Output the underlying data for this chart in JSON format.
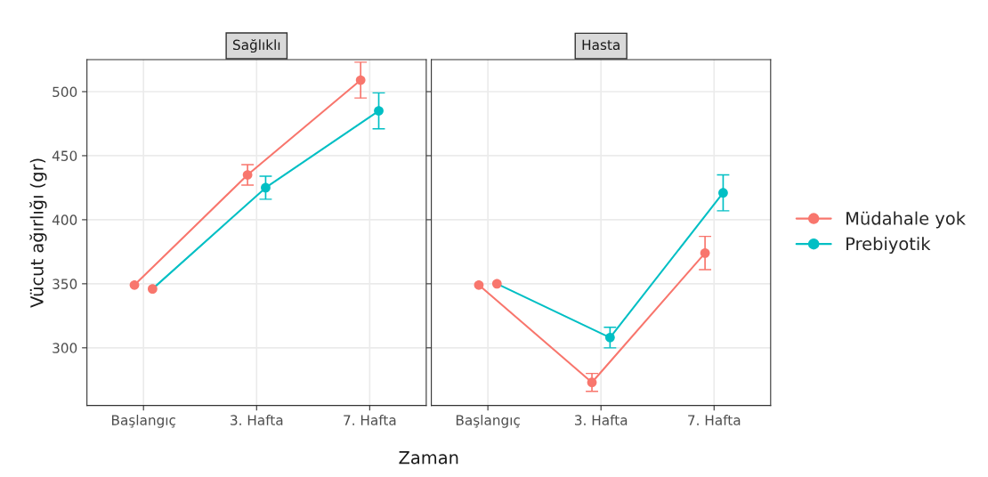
{
  "chart_data": [
    {
      "type": "line",
      "title": "Sağlıklı",
      "xlabel": "Zaman",
      "ylabel": "Vücut ağırlığı (gr)",
      "categories": [
        "Başlangıç",
        "3. Hafta",
        "7. Hafta"
      ],
      "ylim": [
        255,
        525
      ],
      "yticks": [
        300,
        350,
        400,
        450,
        500
      ],
      "grid": true,
      "marker": "circle",
      "line_style": "solid",
      "legend": "right",
      "series": [
        {
          "name": "Müdahale yok",
          "color": "#f8766d",
          "values": [
            349,
            435,
            509
          ],
          "errors": [
            null,
            8,
            14
          ]
        },
        {
          "name": "Prebiyotik",
          "color": "#00bfc4",
          "colors": [
            "#f8766d",
            "#00bfc4",
            "#00bfc4"
          ],
          "values": [
            346,
            425,
            485
          ],
          "errors": [
            null,
            9,
            14
          ]
        }
      ]
    },
    {
      "type": "line",
      "title": "Hasta",
      "categories": [
        "Başlangıç",
        "3. Hafta",
        "7. Hafta"
      ],
      "ylim": [
        255,
        525
      ],
      "yticks": [
        300,
        350,
        400,
        450,
        500
      ],
      "tick_labels": "x",
      "grid": true,
      "marker": "circle",
      "line_style": "solid",
      "legend": "right",
      "series": [
        {
          "name": "Müdahale yok",
          "color": "#f8766d",
          "values": [
            349,
            273,
            374
          ],
          "errors": [
            null,
            7,
            13
          ]
        },
        {
          "name": "Prebiyotik",
          "color": "#00bfc4",
          "colors": [
            "#f8766d",
            "#00bfc4",
            "#00bfc4"
          ],
          "values": [
            350,
            308,
            421
          ],
          "errors": [
            null,
            8,
            14
          ]
        }
      ]
    }
  ]
}
